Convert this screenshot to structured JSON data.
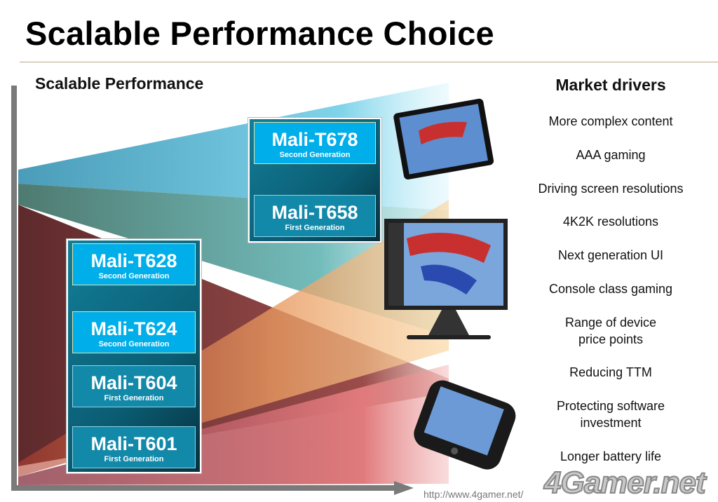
{
  "slide": {
    "title": "Scalable Performance Choice",
    "subtitle": "Scalable Performance"
  },
  "products": {
    "high_end": [
      {
        "name": "Mali-T678",
        "generation": "Second Generation"
      },
      {
        "name": "Mali-T658",
        "generation": "First Generation"
      }
    ],
    "mainstream": [
      {
        "name": "Mali-T628",
        "generation": "Second Generation"
      },
      {
        "name": "Mali-T624",
        "generation": "Second Generation"
      },
      {
        "name": "Mali-T604",
        "generation": "First Generation"
      },
      {
        "name": "Mali-T601",
        "generation": "First Generation"
      }
    ]
  },
  "market_drivers": {
    "heading": "Market drivers",
    "items": [
      "More complex content",
      "AAA gaming",
      "Driving screen resolutions",
      "4K2K resolutions",
      "Next generation UI",
      "Console class gaming",
      "Range of device\nprice points",
      "Reducing TTM",
      "Protecting software\ninvestment",
      "Longer battery life"
    ]
  },
  "devices": [
    "tablet",
    "tv",
    "smartphone"
  ],
  "colors": {
    "chip_gen2": "#00aeea",
    "chip_gen1": "#1389aa",
    "wedge_blue": "#5ab6d0",
    "wedge_teal": "#5e9e96",
    "wedge_darkred": "#6a2c2e",
    "wedge_orange": "#d8623e",
    "wedge_pink": "#d86a72"
  },
  "watermark": {
    "logo": "4Gamer.net",
    "url": "http://www.4gamer.net/"
  }
}
